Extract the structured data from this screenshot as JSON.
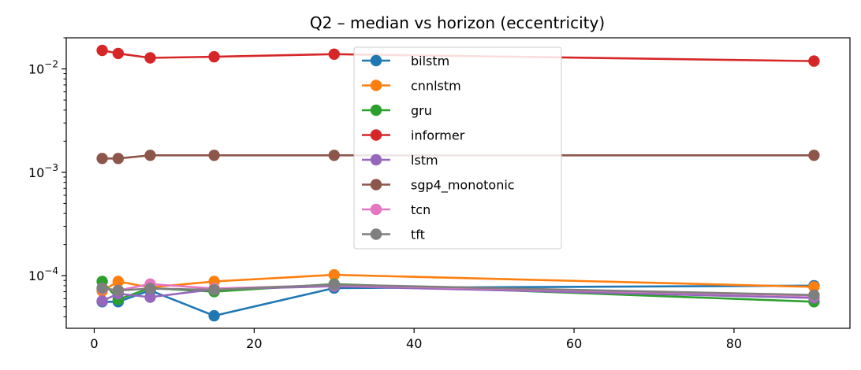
{
  "chart_data": {
    "type": "line",
    "title": "Q2 – median vs horizon (eccentricity)",
    "xlabel": "",
    "ylabel": "",
    "xlim": [
      -3.5,
      94.5
    ],
    "ylim": [
      3.1e-05,
      0.02
    ],
    "yscale": "log",
    "x_ticks": [
      0,
      20,
      40,
      60,
      80
    ],
    "y_ticks": [
      {
        "value": 0.0001,
        "base": "10",
        "exp": "−4"
      },
      {
        "value": 0.001,
        "base": "10",
        "exp": "−3"
      },
      {
        "value": 0.01,
        "base": "10",
        "exp": "−2"
      }
    ],
    "grid": false,
    "legend_position": "upper-center",
    "series": [
      {
        "name": "bilstm",
        "color": "#1f77b4",
        "x": [
          1,
          3,
          7,
          15,
          30,
          90
        ],
        "y": [
          5.6e-05,
          5.6e-05,
          7.2e-05,
          4.1e-05,
          7.6e-05,
          8e-05
        ]
      },
      {
        "name": "cnnlstm",
        "color": "#ff7f0e",
        "x": [
          1,
          3,
          7,
          15,
          30,
          90
        ],
        "y": [
          7.1e-05,
          8.8e-05,
          7.7e-05,
          8.8e-05,
          0.000102,
          7.8e-05
        ]
      },
      {
        "name": "gru",
        "color": "#2ca02c",
        "x": [
          1,
          3,
          7,
          15,
          30,
          90
        ],
        "y": [
          8.8e-05,
          5.9e-05,
          7.6e-05,
          7e-05,
          8.3e-05,
          5.6e-05
        ]
      },
      {
        "name": "informer",
        "color": "#d62728",
        "x": [
          1,
          3,
          7,
          15,
          30,
          90
        ],
        "y": [
          0.0151,
          0.0141,
          0.0128,
          0.0131,
          0.0139,
          0.0119
        ]
      },
      {
        "name": "lstm",
        "color": "#9467bd",
        "x": [
          1,
          3,
          7,
          15,
          30,
          90
        ],
        "y": [
          5.7e-05,
          6.7e-05,
          6.2e-05,
          7.4e-05,
          7.9e-05,
          6.1e-05
        ]
      },
      {
        "name": "sgp4_monotonic",
        "color": "#8c564b",
        "x": [
          1,
          3,
          7,
          15,
          30,
          90
        ],
        "y": [
          0.00136,
          0.00136,
          0.00146,
          0.00146,
          0.00146,
          0.00146
        ]
      },
      {
        "name": "tcn",
        "color": "#e377c2",
        "x": [
          1,
          3,
          7,
          15,
          30,
          90
        ],
        "y": [
          7.5e-05,
          7.2e-05,
          8.3e-05,
          7.5e-05,
          8.1e-05,
          6.4e-05
        ]
      },
      {
        "name": "tft",
        "color": "#7f7f7f",
        "x": [
          1,
          3,
          7,
          15,
          30,
          90
        ],
        "y": [
          7.6e-05,
          7.2e-05,
          7.5e-05,
          7.3e-05,
          8.2e-05,
          6.5e-05
        ]
      }
    ]
  }
}
